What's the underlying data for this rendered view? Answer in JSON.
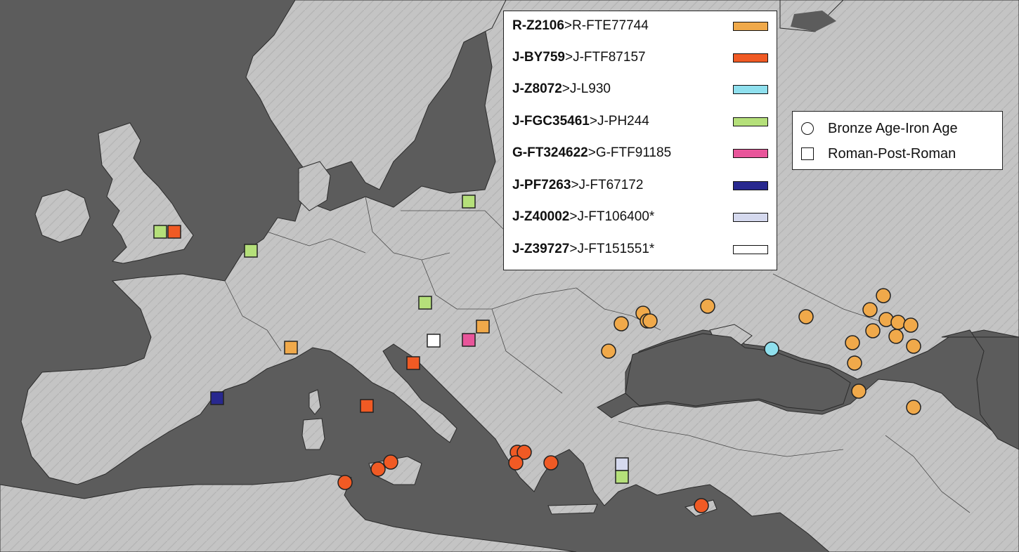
{
  "colors": {
    "sea": "#5a5a5a",
    "land": "#c8c8c8",
    "marker_stroke": "#222222"
  },
  "legend": {
    "haplogroups": [
      {
        "id": "orange",
        "bold": "R-Z2106",
        "rest": ">R-FTE77744",
        "color": "#f0a94a"
      },
      {
        "id": "red",
        "bold": "J-BY759",
        "rest": ">J-FTF87157",
        "color": "#f05a24"
      },
      {
        "id": "cyan",
        "bold": "J-Z8072",
        "rest": ">J-L930",
        "color": "#8fe0ee"
      },
      {
        "id": "green",
        "bold": "J-FGC35461",
        "rest": ">J-PH244",
        "color": "#b5e07a"
      },
      {
        "id": "pink",
        "bold": "G-FT324622",
        "rest": ">G-FTF91185",
        "color": "#e8559a"
      },
      {
        "id": "navy",
        "bold": "J-PF7263",
        "rest": ">J-FT67172",
        "color": "#28288f"
      },
      {
        "id": "lavender",
        "bold": "J-Z40002",
        "rest": ">J-FT106400*",
        "color": "#d5d9ee"
      },
      {
        "id": "white",
        "bold": "J-Z39727",
        "rest": ">J-FT151551*",
        "color": "#ffffff"
      }
    ],
    "periods": [
      {
        "shape": "circle",
        "label": "Bronze Age-Iron Age"
      },
      {
        "shape": "square",
        "label": "Roman-Post-Roman"
      }
    ]
  },
  "markers": [
    {
      "shape": "square",
      "group": "green",
      "place": "England"
    },
    {
      "shape": "square",
      "group": "red",
      "place": "England"
    },
    {
      "shape": "square",
      "group": "green",
      "place": "Netherlands"
    },
    {
      "shape": "square",
      "group": "green",
      "place": "Poland"
    },
    {
      "shape": "square",
      "group": "green",
      "place": "Czechia"
    },
    {
      "shape": "square",
      "group": "orange",
      "place": "Hungary"
    },
    {
      "shape": "square",
      "group": "pink",
      "place": "Hungary"
    },
    {
      "shape": "square",
      "group": "white",
      "place": "Croatia"
    },
    {
      "shape": "square",
      "group": "orange",
      "place": "Northern Italy"
    },
    {
      "shape": "square",
      "group": "red",
      "place": "Croatia coast"
    },
    {
      "shape": "square",
      "group": "red",
      "place": "Central Italy"
    },
    {
      "shape": "square",
      "group": "navy",
      "place": "Spain"
    },
    {
      "shape": "square",
      "group": "lavender",
      "place": "Aegean"
    },
    {
      "shape": "square",
      "group": "green",
      "place": "Aegean"
    },
    {
      "shape": "circle",
      "group": "red",
      "place": "Tunisia"
    },
    {
      "shape": "circle",
      "group": "red",
      "place": "Sicily"
    },
    {
      "shape": "circle",
      "group": "red",
      "place": "Sicily"
    },
    {
      "shape": "circle",
      "group": "red",
      "place": "Greece"
    },
    {
      "shape": "circle",
      "group": "red",
      "place": "Greece"
    },
    {
      "shape": "circle",
      "group": "red",
      "place": "Greece"
    },
    {
      "shape": "circle",
      "group": "red",
      "place": "Greece"
    },
    {
      "shape": "circle",
      "group": "red",
      "place": "Cyprus"
    },
    {
      "shape": "circle",
      "group": "cyan",
      "place": "Black Sea coast"
    },
    {
      "shape": "circle",
      "group": "orange",
      "place": "Romania"
    },
    {
      "shape": "circle",
      "group": "orange",
      "place": "Moldova"
    },
    {
      "shape": "circle",
      "group": "orange",
      "place": "Moldova"
    },
    {
      "shape": "circle",
      "group": "orange",
      "place": "Moldova"
    },
    {
      "shape": "circle",
      "group": "orange",
      "place": "Moldova"
    },
    {
      "shape": "circle",
      "group": "orange",
      "place": "Ukraine"
    },
    {
      "shape": "circle",
      "group": "orange",
      "place": "Steppe"
    },
    {
      "shape": "circle",
      "group": "orange",
      "place": "Steppe"
    },
    {
      "shape": "circle",
      "group": "orange",
      "place": "Steppe"
    },
    {
      "shape": "circle",
      "group": "orange",
      "place": "Steppe"
    },
    {
      "shape": "circle",
      "group": "orange",
      "place": "Steppe"
    },
    {
      "shape": "circle",
      "group": "orange",
      "place": "Steppe"
    },
    {
      "shape": "circle",
      "group": "orange",
      "place": "Steppe"
    },
    {
      "shape": "circle",
      "group": "orange",
      "place": "Steppe"
    },
    {
      "shape": "circle",
      "group": "orange",
      "place": "Steppe"
    },
    {
      "shape": "circle",
      "group": "orange",
      "place": "Steppe"
    },
    {
      "shape": "circle",
      "group": "orange",
      "place": "Steppe"
    },
    {
      "shape": "circle",
      "group": "orange",
      "place": "Caucasus"
    },
    {
      "shape": "circle",
      "group": "orange",
      "place": "Caucasus"
    }
  ]
}
